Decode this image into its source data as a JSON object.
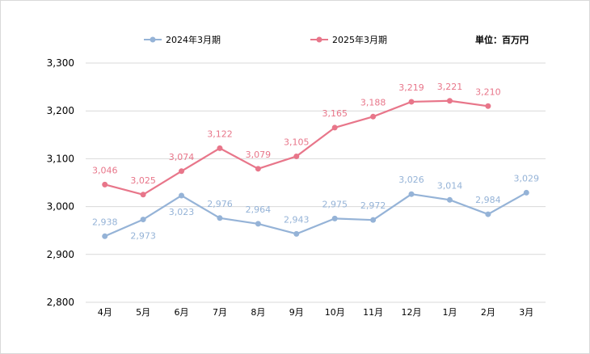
{
  "chart_data": {
    "type": "line",
    "categories": [
      "4月",
      "5月",
      "6月",
      "7月",
      "8月",
      "9月",
      "10月",
      "11月",
      "12月",
      "1月",
      "2月",
      "3月"
    ],
    "series": [
      {
        "name": "2024年3月期",
        "color": "#95b3d7",
        "values": [
          2938,
          2973,
          3023,
          2976,
          2964,
          2943,
          2975,
          2972,
          3026,
          3014,
          2984,
          3029
        ],
        "labels": [
          "2,938",
          "2,973",
          "3,023",
          "2,976",
          "2,964",
          "2,943",
          "2,975",
          "2,972",
          "3,026",
          "3,014",
          "2,984",
          "3,029"
        ]
      },
      {
        "name": "2025年3月期",
        "color": "#e8768a",
        "values": [
          3046,
          3025,
          3074,
          3122,
          3079,
          3105,
          3165,
          3188,
          3219,
          3221,
          3210,
          null
        ],
        "labels": [
          "3,046",
          "3,025",
          "3,074",
          "3,122",
          "3,079",
          "3,105",
          "3,165",
          "3,188",
          "3,219",
          "3,221",
          "3,210",
          ""
        ]
      }
    ],
    "ylim": [
      2800,
      3300
    ],
    "yticks": [
      2800,
      2900,
      3000,
      3100,
      3200,
      3300
    ],
    "ytick_labels": [
      "2,800",
      "2,900",
      "3,000",
      "3,100",
      "3,200",
      "3,300"
    ],
    "grid": true,
    "legend_position": "top",
    "unit_label": "単位：百万円"
  }
}
